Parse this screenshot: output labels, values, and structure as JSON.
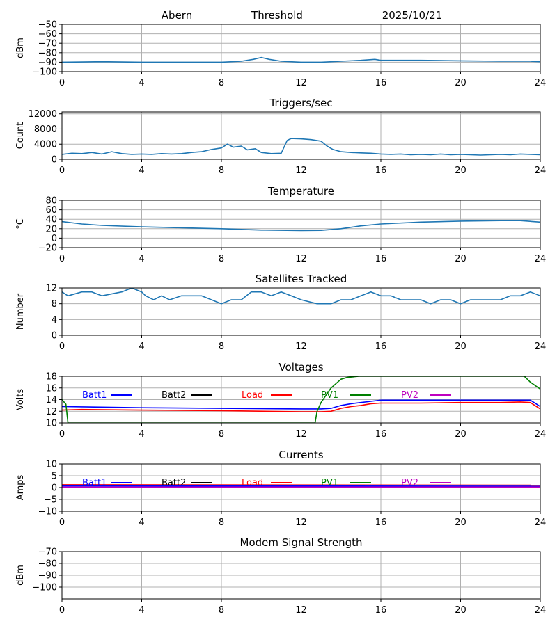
{
  "header": {
    "site": "Abern",
    "mode": "Threshold",
    "date": "2025/10/21"
  },
  "colors": {
    "series": "#1f77b4",
    "grid": "#b0b0b0",
    "batt1": "#0000ff",
    "batt2": "#000000",
    "load": "#ff0000",
    "pv1": "#008000",
    "pv2": "#bf00bf"
  },
  "chart_data": [
    {
      "id": "threshold",
      "type": "line",
      "title": "",
      "xlabel": "",
      "ylabel": "dBm",
      "xlim": [
        0,
        24
      ],
      "xticks": [
        0,
        4,
        8,
        12,
        16,
        20,
        24
      ],
      "ylim": [
        -100,
        -50
      ],
      "yticks": [
        -100,
        -90,
        -80,
        -70,
        -60,
        -50
      ],
      "series": [
        {
          "color": "#1f77b4",
          "x": [
            0,
            2,
            4,
            6,
            8,
            9,
            9.6,
            10,
            10.4,
            11,
            12,
            13,
            14,
            15,
            15.7,
            16,
            18,
            20,
            22,
            23.5,
            24
          ],
          "y": [
            -90,
            -89.5,
            -90,
            -90,
            -90,
            -89,
            -87,
            -85,
            -87,
            -89,
            -90,
            -90,
            -89,
            -88,
            -87,
            -88,
            -88,
            -88.5,
            -89,
            -89,
            -89.5
          ]
        }
      ]
    },
    {
      "id": "triggers",
      "type": "line",
      "title": "Triggers/sec",
      "xlabel": "",
      "ylabel": "Count",
      "xlim": [
        0,
        24
      ],
      "xticks": [
        0,
        4,
        8,
        12,
        16,
        20,
        24
      ],
      "ylim": [
        0,
        12500
      ],
      "yticks": [
        0,
        4000,
        8000,
        12000
      ],
      "series": [
        {
          "color": "#1f77b4",
          "x": [
            0,
            0.5,
            1,
            1.5,
            2,
            2.5,
            3,
            3.5,
            4,
            4.5,
            5,
            5.5,
            6,
            6.5,
            7,
            7.5,
            8,
            8.3,
            8.6,
            9,
            9.3,
            9.7,
            10,
            10.5,
            11,
            11.3,
            11.5,
            12,
            12.5,
            13,
            13.3,
            13.6,
            14,
            14.5,
            15,
            15.5,
            16,
            16.5,
            17,
            17.5,
            18,
            18.5,
            19,
            19.5,
            20,
            20.5,
            21,
            21.5,
            22,
            22.5,
            23,
            23.5,
            24
          ],
          "y": [
            1300,
            1600,
            1500,
            1800,
            1400,
            2000,
            1500,
            1300,
            1400,
            1300,
            1500,
            1400,
            1500,
            1800,
            2000,
            2600,
            3000,
            4000,
            3200,
            3500,
            2500,
            2800,
            1800,
            1500,
            1600,
            5000,
            5500,
            5400,
            5200,
            4800,
            3500,
            2600,
            2000,
            1800,
            1700,
            1600,
            1400,
            1300,
            1400,
            1200,
            1300,
            1200,
            1400,
            1200,
            1300,
            1200,
            1100,
            1200,
            1300,
            1200,
            1400,
            1300,
            1200
          ]
        }
      ]
    },
    {
      "id": "temperature",
      "type": "line",
      "title": "Temperature",
      "xlabel": "",
      "ylabel": "°C",
      "xlim": [
        0,
        24
      ],
      "xticks": [
        0,
        4,
        8,
        12,
        16,
        20,
        24
      ],
      "ylim": [
        -20,
        80
      ],
      "yticks": [
        -20,
        0,
        20,
        40,
        60,
        80
      ],
      "series": [
        {
          "color": "#1f77b4",
          "x": [
            0,
            1,
            2,
            4,
            6,
            8,
            10,
            12,
            13,
            14,
            15,
            16,
            18,
            20,
            22,
            23,
            24
          ],
          "y": [
            35,
            30,
            27,
            24,
            22,
            20,
            17,
            16,
            16.5,
            20,
            26,
            30,
            34,
            36,
            37,
            37,
            34
          ]
        }
      ]
    },
    {
      "id": "satellites",
      "type": "line",
      "title": "Satellites Tracked",
      "xlabel": "",
      "ylabel": "Number",
      "xlim": [
        0,
        24
      ],
      "xticks": [
        0,
        4,
        8,
        12,
        16,
        20,
        24
      ],
      "ylim": [
        0,
        12
      ],
      "yticks": [
        0,
        4,
        8,
        12
      ],
      "series": [
        {
          "color": "#1f77b4",
          "x": [
            0,
            0.3,
            1,
            1.5,
            2,
            3,
            3.5,
            4,
            4.2,
            4.6,
            5,
            5.4,
            6,
            7,
            7.5,
            8,
            8.5,
            9,
            9.5,
            10,
            10.5,
            11,
            11.5,
            12,
            12.8,
            13.5,
            14,
            14.5,
            15,
            15.5,
            16,
            16.5,
            17,
            17.5,
            18,
            18.5,
            19,
            19.5,
            20,
            20.5,
            21,
            22,
            22.5,
            23,
            23.5,
            24
          ],
          "y": [
            11,
            10,
            11,
            11,
            10,
            11,
            12,
            11,
            10,
            9,
            10,
            9,
            10,
            10,
            9,
            8,
            9,
            9,
            11,
            11,
            10,
            11,
            10,
            9,
            8,
            8,
            9,
            9,
            10,
            11,
            10,
            10,
            9,
            9,
            9,
            8,
            9,
            9,
            8,
            9,
            9,
            9,
            10,
            10,
            11,
            10
          ]
        }
      ]
    },
    {
      "id": "voltages",
      "type": "line",
      "title": "Voltages",
      "xlabel": "",
      "ylabel": "Volts",
      "xlim": [
        0,
        24
      ],
      "xticks": [
        0,
        4,
        8,
        12,
        16,
        20,
        24
      ],
      "ylim": [
        10,
        18
      ],
      "yticks": [
        10,
        12,
        14,
        16,
        18
      ],
      "legend": [
        "Batt1",
        "Batt2",
        "Load",
        "PV1",
        "PV2"
      ],
      "series": [
        {
          "name": "Batt1",
          "color": "#0000ff",
          "x": [
            0,
            4,
            8,
            12,
            13,
            13.5,
            14,
            14.5,
            15,
            15.5,
            16,
            18,
            20,
            22,
            23.5,
            24
          ],
          "y": [
            12.8,
            12.6,
            12.5,
            12.4,
            12.4,
            12.5,
            13,
            13.3,
            13.5,
            13.7,
            13.9,
            13.9,
            13.9,
            13.9,
            13.9,
            12.8
          ]
        },
        {
          "name": "Load",
          "color": "#ff0000",
          "x": [
            0,
            1,
            4,
            8,
            12,
            13,
            13.5,
            14,
            14.5,
            15,
            15.5,
            16,
            18,
            20,
            22,
            23,
            23.5,
            24
          ],
          "y": [
            12.2,
            12.3,
            12.2,
            12.1,
            11.9,
            11.9,
            12.0,
            12.5,
            12.8,
            13.0,
            13.3,
            13.4,
            13.4,
            13.5,
            13.5,
            13.6,
            13.5,
            12.4
          ]
        },
        {
          "name": "PV1",
          "color": "#008000",
          "x": [
            0,
            0.2,
            0.3,
            12.7,
            12.8,
            13,
            13.5,
            14,
            14.3,
            14.9,
            23.2,
            23.5,
            24
          ],
          "y": [
            14,
            13.2,
            10,
            10,
            12,
            13.5,
            16,
            17.5,
            17.8,
            18,
            18,
            17,
            15.8
          ]
        },
        {
          "name": "PV2",
          "color": "#bf00bf",
          "x": [],
          "y": []
        },
        {
          "name": "Batt2",
          "color": "#000000",
          "x": [],
          "y": []
        }
      ]
    },
    {
      "id": "currents",
      "type": "line",
      "title": "Currents",
      "xlabel": "",
      "ylabel": "Amps",
      "xlim": [
        0,
        24
      ],
      "xticks": [
        0,
        4,
        8,
        12,
        16,
        20,
        24
      ],
      "ylim": [
        -10,
        10
      ],
      "yticks": [
        -10,
        -5,
        0,
        5,
        10
      ],
      "legend": [
        "Batt1",
        "Batt2",
        "Load",
        "PV1",
        "PV2"
      ],
      "series": [
        {
          "name": "Load",
          "color": "#ff0000",
          "x": [
            0,
            24
          ],
          "y": [
            1.2,
            1.0
          ]
        },
        {
          "name": "Batt1",
          "color": "#0000ff",
          "x": [
            0,
            24
          ],
          "y": [
            0.7,
            0.6
          ]
        },
        {
          "name": "PV2",
          "color": "#bf00bf",
          "x": [
            0,
            24
          ],
          "y": [
            0.2,
            0.2
          ]
        },
        {
          "name": "Batt2",
          "color": "#000000",
          "x": [],
          "y": []
        },
        {
          "name": "PV1",
          "color": "#008000",
          "x": [],
          "y": []
        }
      ]
    },
    {
      "id": "modem",
      "type": "line",
      "title": "Modem Signal Strength",
      "xlabel": "",
      "ylabel": "dBm",
      "xlim": [
        0,
        24
      ],
      "xticks": [
        0,
        4,
        8,
        12,
        16,
        20,
        24
      ],
      "ylim": [
        -110,
        -70
      ],
      "yticks": [
        -100,
        -90,
        -80,
        -70
      ],
      "series": []
    }
  ]
}
